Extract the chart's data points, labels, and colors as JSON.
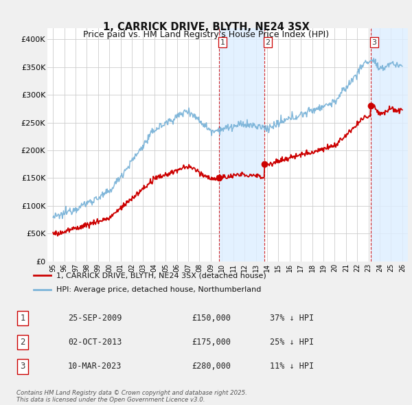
{
  "title": "1, CARRICK DRIVE, BLYTH, NE24 3SX",
  "subtitle": "Price paid vs. HM Land Registry's House Price Index (HPI)",
  "ylim": [
    0,
    420000
  ],
  "yticks": [
    0,
    50000,
    100000,
    150000,
    200000,
    250000,
    300000,
    350000,
    400000
  ],
  "ytick_labels": [
    "£0",
    "£50K",
    "£100K",
    "£150K",
    "£200K",
    "£250K",
    "£300K",
    "£350K",
    "£400K"
  ],
  "bg_color": "#f0f0f0",
  "plot_bg_color": "#ffffff",
  "grid_color": "#cccccc",
  "hpi_color": "#7ab3d8",
  "price_color": "#cc0000",
  "sale1_date": 2009.73,
  "sale1_price": 150000,
  "sale2_date": 2013.75,
  "sale2_price": 175000,
  "sale3_date": 2023.19,
  "sale3_price": 280000,
  "band_color": "#ddeeff",
  "dashed_color": "#cc0000",
  "legend_label_price": "1, CARRICK DRIVE, BLYTH, NE24 3SX (detached house)",
  "legend_label_hpi": "HPI: Average price, detached house, Northumberland",
  "table_rows": [
    {
      "num": "1",
      "date": "25-SEP-2009",
      "price": "£150,000",
      "note": "37% ↓ HPI"
    },
    {
      "num": "2",
      "date": "02-OCT-2013",
      "price": "£175,000",
      "note": "25% ↓ HPI"
    },
    {
      "num": "3",
      "date": "10-MAR-2023",
      "price": "£280,000",
      "note": "11% ↓ HPI"
    }
  ],
  "footer": "Contains HM Land Registry data © Crown copyright and database right 2025.\nThis data is licensed under the Open Government Licence v3.0.",
  "xmin": 1995,
  "xmax": 2026
}
